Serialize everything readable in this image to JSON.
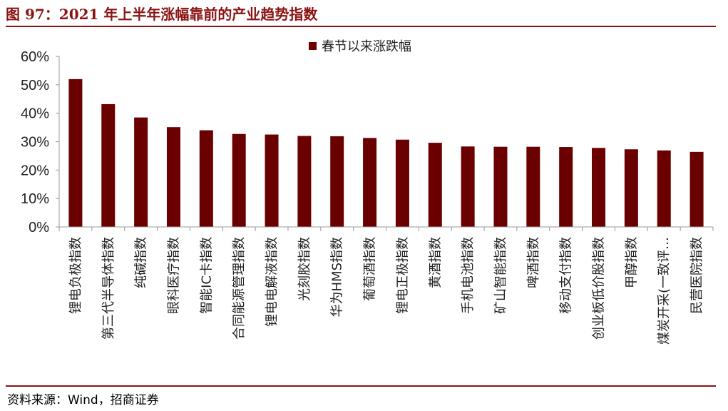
{
  "header": {
    "title": "图 97：2021 年上半年涨幅靠前的产业趋势指数"
  },
  "footer": {
    "source": "资料来源：Wind，招商证券"
  },
  "colors": {
    "bar": "#6b0000",
    "rule": "#8c1313",
    "axis": "#999999"
  },
  "chart_data": {
    "type": "bar",
    "categories": [
      "锂电负极指数",
      "第三代半导体指数",
      "纯碱指数",
      "眼科医疗指数",
      "智能IC卡指数",
      "合同能源管理指数",
      "锂电电解液指数",
      "光刻胶指数",
      "华为HMS指数",
      "葡萄酒指数",
      "锂电正极指数",
      "黄酒指数",
      "手机电池指数",
      "矿山智能指数",
      "啤酒指数",
      "移动支付指数",
      "创业板低价股指数",
      "甲醇指数",
      "煤炭开采(一致评…",
      "民营医院指数"
    ],
    "series": [
      {
        "name": "春节以来涨跌幅",
        "values": [
          52.0,
          43.2,
          38.5,
          35.1,
          34.0,
          32.7,
          32.5,
          32.0,
          31.9,
          31.3,
          30.7,
          29.6,
          28.3,
          28.2,
          28.2,
          28.1,
          27.8,
          27.3,
          26.9,
          26.4
        ]
      }
    ],
    "y_ticks": [
      "0%",
      "10%",
      "20%",
      "30%",
      "40%",
      "50%",
      "60%"
    ],
    "ylim": [
      0,
      60
    ],
    "legend": "top-center",
    "grid": false
  }
}
